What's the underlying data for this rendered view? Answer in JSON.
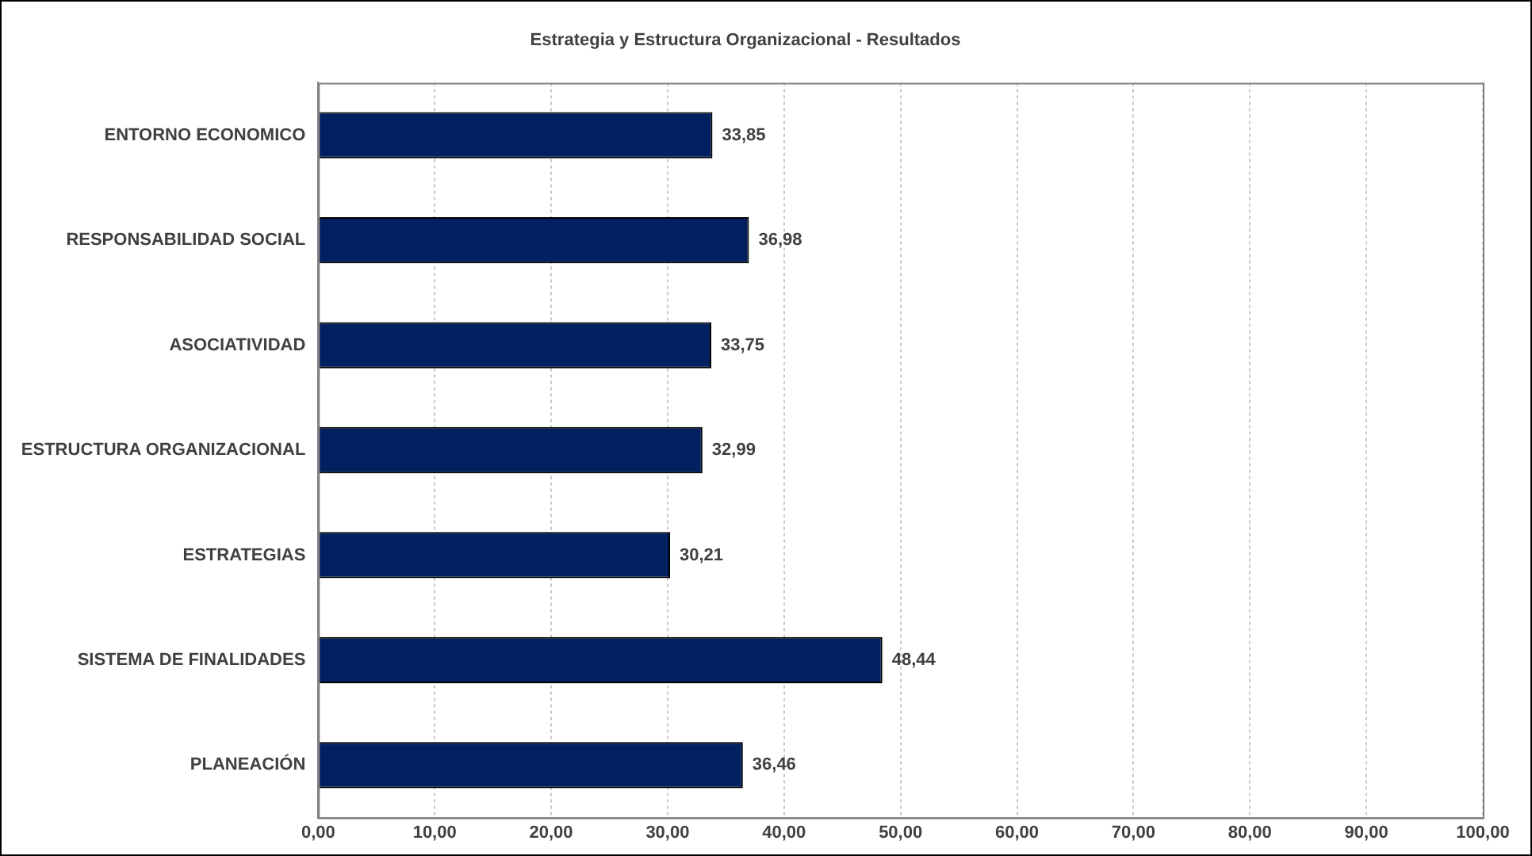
{
  "chart_data": {
    "type": "bar",
    "orientation": "horizontal",
    "title": "Estrategia y Estructura Organizacional - Resultados",
    "categories": [
      "ENTORNO ECONOMICO",
      "RESPONSABILIDAD SOCIAL",
      "ASOCIATIVIDAD",
      "ESTRUCTURA ORGANIZACIONAL",
      "ESTRATEGIAS",
      "SISTEMA DE FINALIDADES",
      "PLANEACIÓN"
    ],
    "values": [
      33.85,
      36.98,
      33.75,
      32.99,
      30.21,
      48.44,
      36.46
    ],
    "value_labels": [
      "33,85",
      "36,98",
      "33,75",
      "32,99",
      "30,21",
      "48,44",
      "36,46"
    ],
    "color": "#002060",
    "xlim": [
      0,
      100
    ],
    "xticks": [
      {
        "value": 0,
        "label": "0,00"
      },
      {
        "value": 10,
        "label": "10,00"
      },
      {
        "value": 20,
        "label": "20,00"
      },
      {
        "value": 30,
        "label": "30,00"
      },
      {
        "value": 40,
        "label": "40,00"
      },
      {
        "value": 50,
        "label": "50,00"
      },
      {
        "value": 60,
        "label": "60,00"
      },
      {
        "value": 70,
        "label": "70,00"
      },
      {
        "value": 80,
        "label": "80,00"
      },
      {
        "value": 90,
        "label": "90,00"
      },
      {
        "value": 100,
        "label": "100,00"
      }
    ],
    "grid": "x",
    "legend": false
  }
}
